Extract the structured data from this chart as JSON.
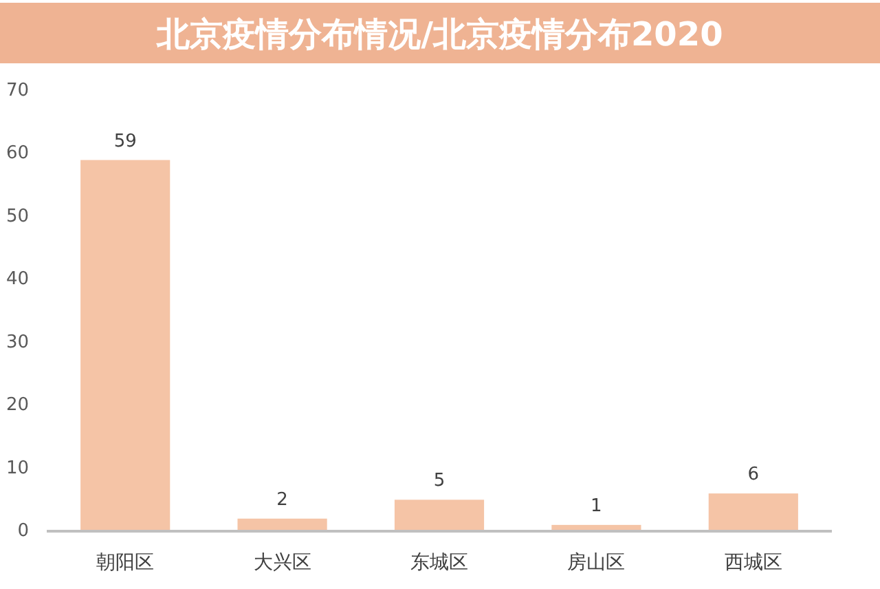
{
  "chart_data": {
    "type": "bar",
    "title": "北京疫情分布情况/北京疫情分布2020",
    "categories": [
      "朝阳区",
      "大兴区",
      "东城区",
      "房山区",
      "西城区"
    ],
    "values": [
      59,
      2,
      5,
      1,
      6
    ],
    "color": "#f5c4a6",
    "ylim": [
      0,
      70
    ],
    "yticks": [
      0,
      10,
      20,
      30,
      40,
      50,
      60,
      70
    ],
    "data_labels": true
  }
}
